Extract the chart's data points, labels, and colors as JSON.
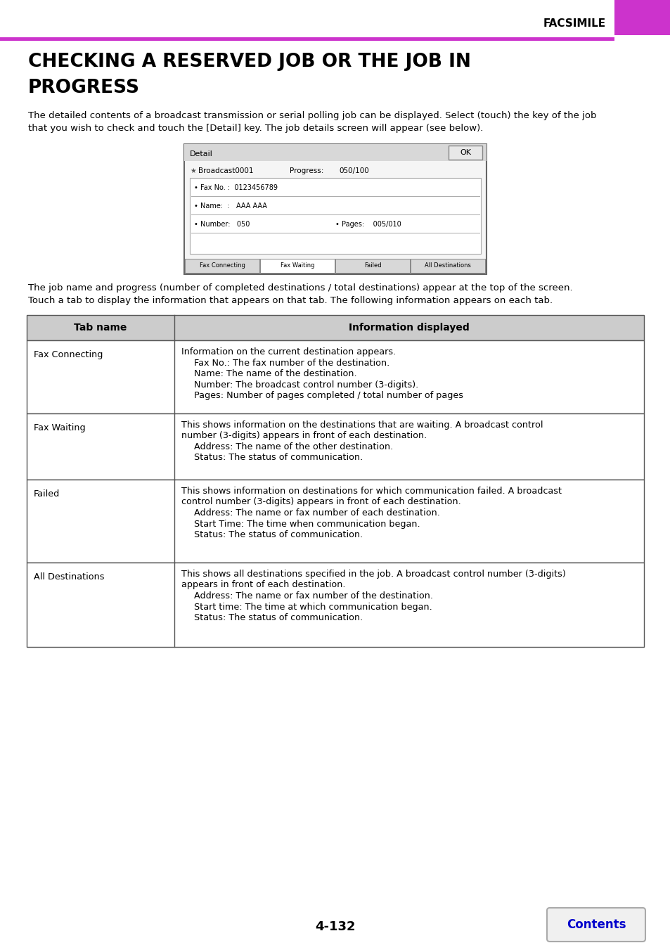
{
  "page_bg": "#ffffff",
  "header_bar_color": "#cc33cc",
  "header_text": "FACSIMILE",
  "title_line1": "CHECKING A RESERVED JOB OR THE JOB IN",
  "title_line2": "PROGRESS",
  "intro_text_line1": "The detailed contents of a broadcast transmission or serial polling job can be displayed. Select (touch) the key of the job",
  "intro_text_line2": "that you wish to check and touch the [Detail] key. The job details screen will appear (see below).",
  "screen_caption_line1": "The job name and progress (number of completed destinations / total destinations) appear at the top of the screen.",
  "screen_caption_line2": "Touch a tab to display the information that appears on that tab. The following information appears on each tab.",
  "table_header_bg": "#cccccc",
  "table_header_col1": "Tab name",
  "table_header_col2": "Information displayed",
  "table_rows": [
    {
      "col1": "Fax Connecting",
      "col2_lines": [
        {
          "text": "Information on the current destination appears.",
          "indent": false
        },
        {
          "text": "Fax No.: The fax number of the destination.",
          "indent": true
        },
        {
          "text": "Name: The name of the destination.",
          "indent": true
        },
        {
          "text": "Number: The broadcast control number (3-digits).",
          "indent": true
        },
        {
          "text": "Pages: Number of pages completed / total number of pages",
          "indent": true
        }
      ]
    },
    {
      "col1": "Fax Waiting",
      "col2_lines": [
        {
          "text": "This shows information on the destinations that are waiting. A broadcast control",
          "indent": false
        },
        {
          "text": "number (3-digits) appears in front of each destination.",
          "indent": false
        },
        {
          "text": "Address: The name of the other destination.",
          "indent": true
        },
        {
          "text": "Status: The status of communication.",
          "indent": true
        }
      ]
    },
    {
      "col1": "Failed",
      "col2_lines": [
        {
          "text": "This shows information on destinations for which communication failed. A broadcast",
          "indent": false
        },
        {
          "text": "control number (3-digits) appears in front of each destination.",
          "indent": false
        },
        {
          "text": "Address: The name or fax number of each destination.",
          "indent": true
        },
        {
          "text": "Start Time: The time when communication began.",
          "indent": true
        },
        {
          "text": "Status: The status of communication.",
          "indent": true
        }
      ]
    },
    {
      "col1": "All Destinations",
      "col2_lines": [
        {
          "text": "This shows all destinations specified in the job. A broadcast control number (3-digits)",
          "indent": false
        },
        {
          "text": "appears in front of each destination.",
          "indent": false
        },
        {
          "text": "Address: The name or fax number of the destination.",
          "indent": true
        },
        {
          "text": "Start time: The time at which communication began.",
          "indent": true
        },
        {
          "text": "Status: The status of communication.",
          "indent": true
        }
      ]
    }
  ],
  "page_number": "4-132",
  "contents_btn_text": "Contents",
  "contents_btn_color": "#0000cc"
}
